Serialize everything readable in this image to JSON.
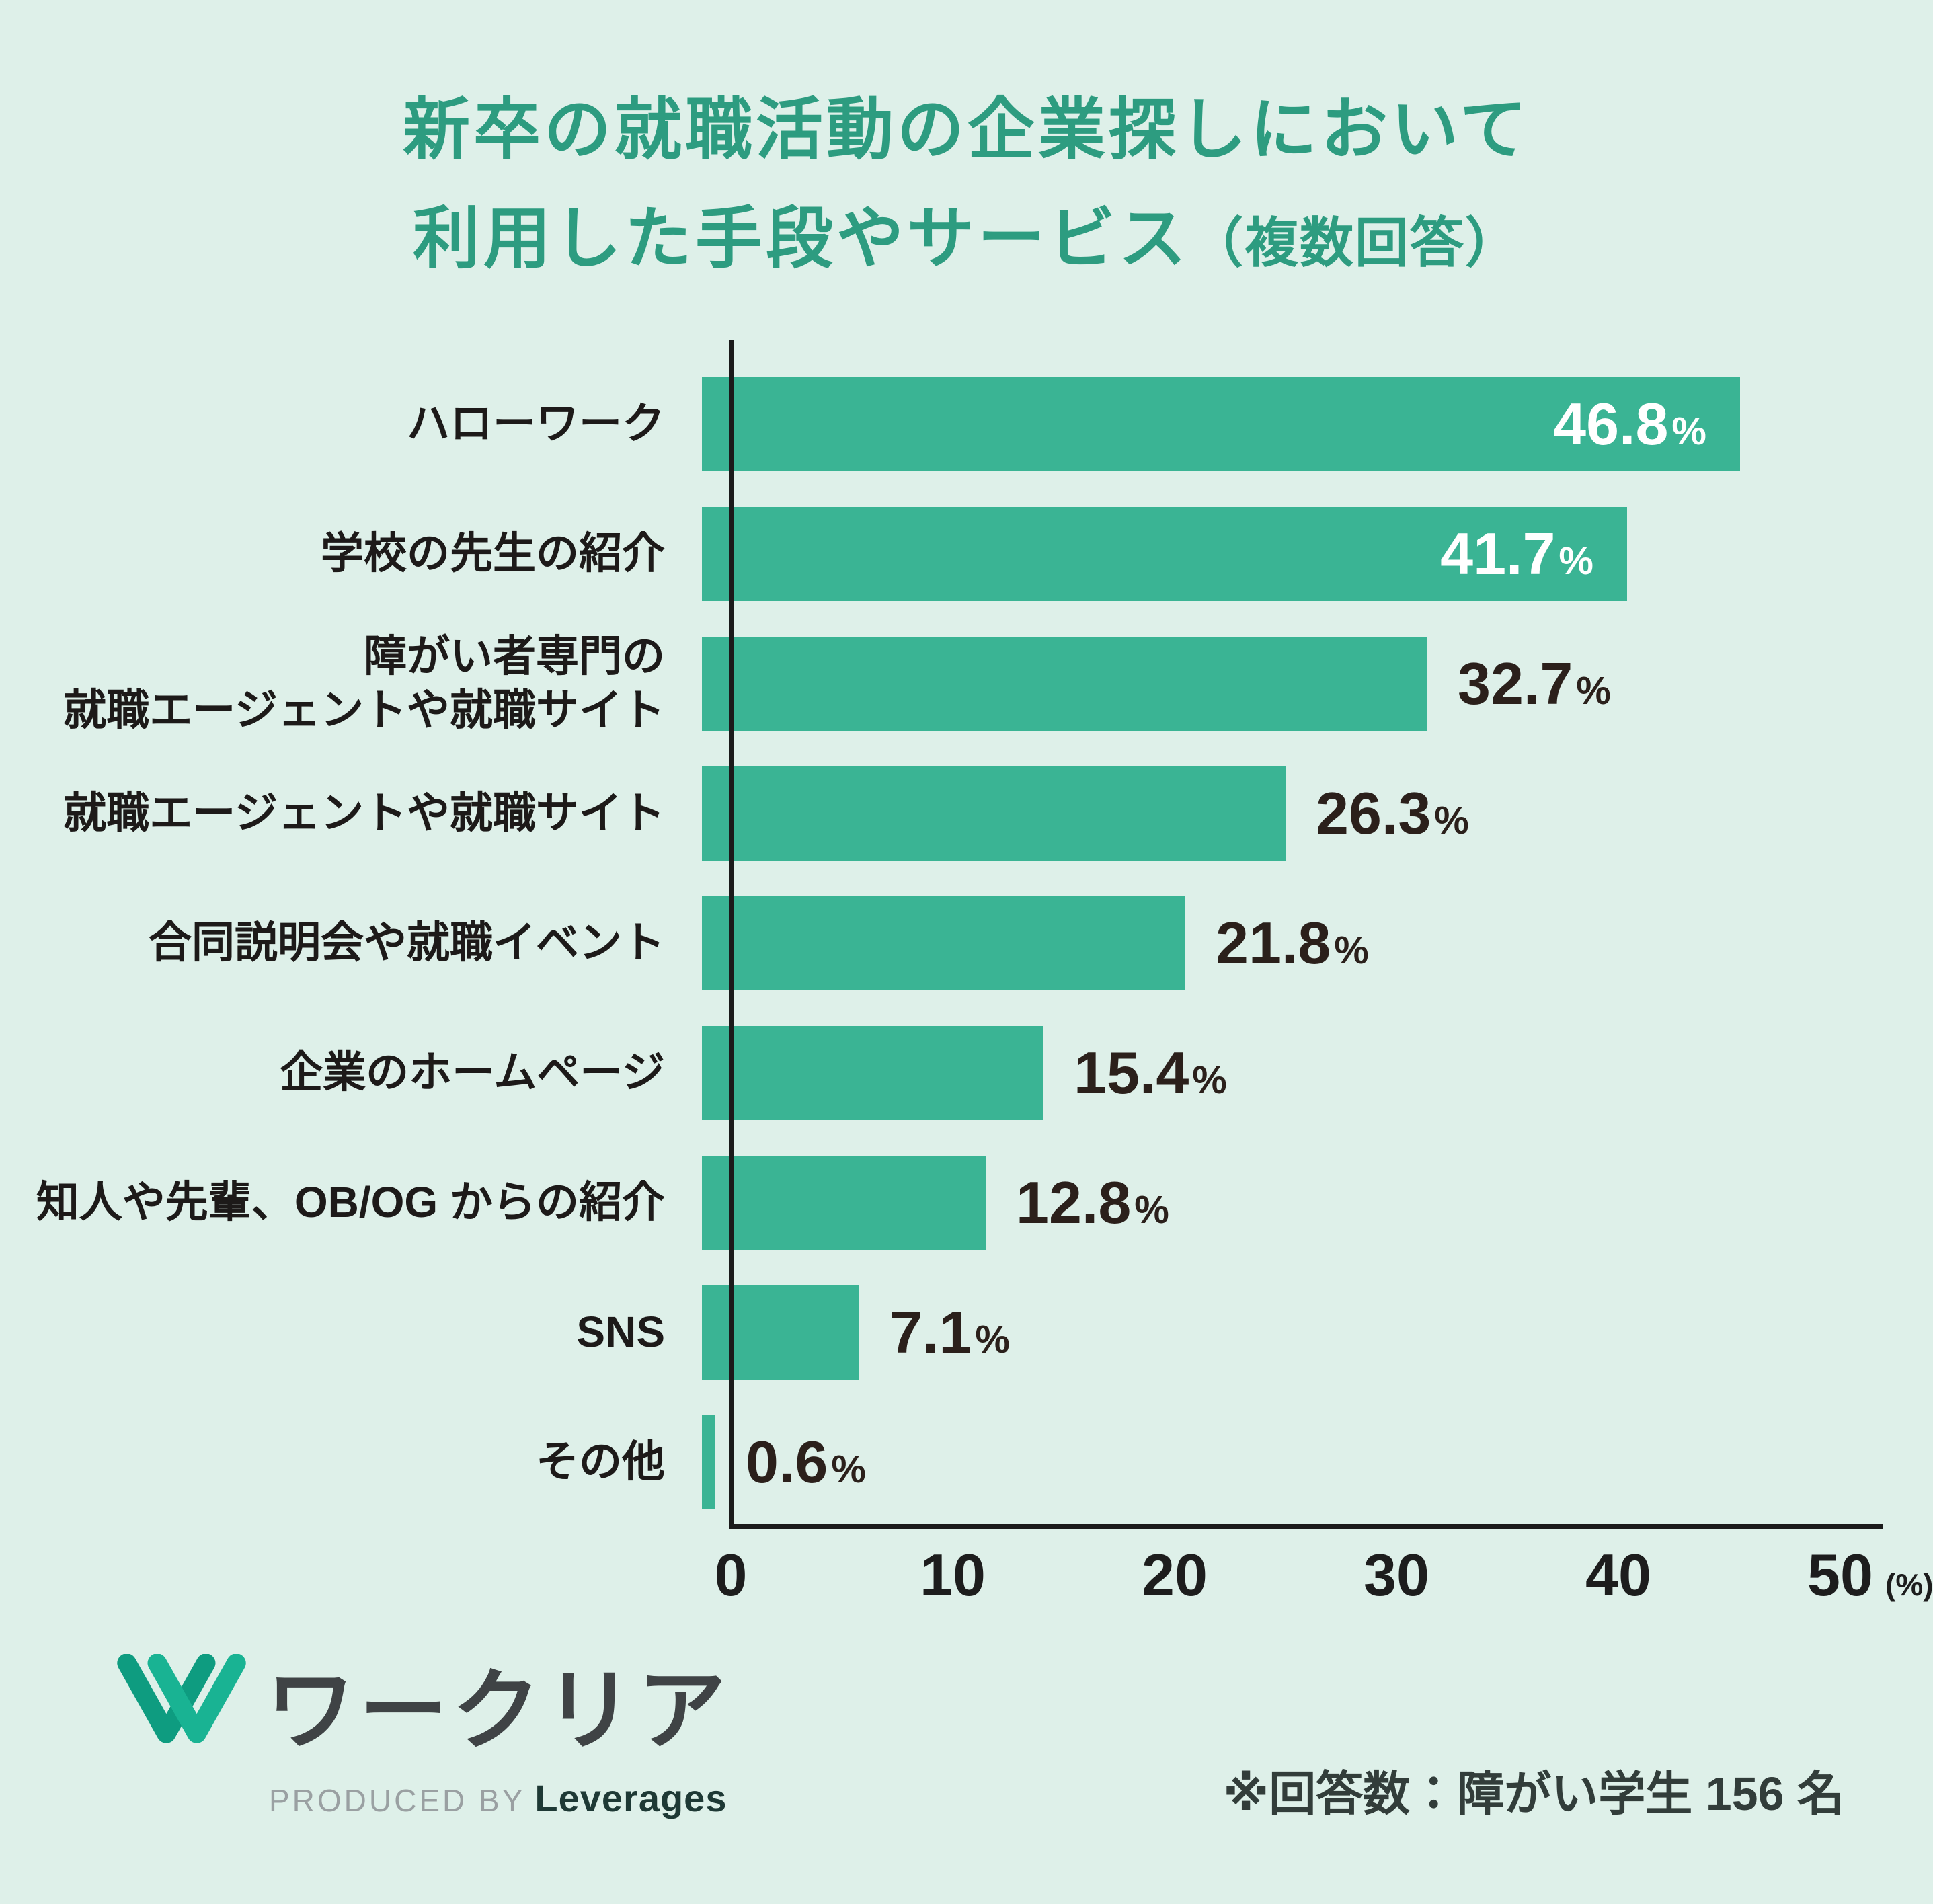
{
  "title": {
    "line1": "新卒の就職活動の企業探しにおいて",
    "line2_main": "利用した手段やサービス",
    "line2_note": "（複数回答）"
  },
  "chart_data": {
    "type": "bar",
    "orientation": "horizontal",
    "title": "新卒の就職活動の企業探しにおいて利用した手段やサービス（複数回答）",
    "categories": [
      "ハローワーク",
      "学校の先生の紹介",
      "障がい者専門の就職エージェントや就職サイト",
      "就職エージェントや就職サイト",
      "合同説明会や就職イベント",
      "企業のホームページ",
      "知人や先輩、OB/OG からの紹介",
      "SNS",
      "その他"
    ],
    "values": [
      46.8,
      41.7,
      32.7,
      26.3,
      21.8,
      15.4,
      12.8,
      7.1,
      0.6
    ],
    "bars": [
      {
        "label_lines": [
          "ハローワーク"
        ],
        "value": 46.8,
        "display": "46.8",
        "value_inside": true
      },
      {
        "label_lines": [
          "学校の先生の紹介"
        ],
        "value": 41.7,
        "display": "41.7",
        "value_inside": true
      },
      {
        "label_lines": [
          "障がい者専門の",
          "就職エージェントや就職サイト"
        ],
        "value": 32.7,
        "display": "32.7",
        "value_inside": false
      },
      {
        "label_lines": [
          "就職エージェントや就職サイト"
        ],
        "value": 26.3,
        "display": "26.3",
        "value_inside": false
      },
      {
        "label_lines": [
          "合同説明会や就職イベント"
        ],
        "value": 21.8,
        "display": "21.8",
        "value_inside": false
      },
      {
        "label_lines": [
          "企業のホームページ"
        ],
        "value": 15.4,
        "display": "15.4",
        "value_inside": false
      },
      {
        "label_lines": [
          "知人や先輩、OB/OG からの紹介"
        ],
        "value": 12.8,
        "display": "12.8",
        "value_inside": false
      },
      {
        "label_lines": [
          "SNS"
        ],
        "value": 7.1,
        "display": "7.1",
        "value_inside": false
      },
      {
        "label_lines": [
          "その他"
        ],
        "value": 0.6,
        "display": "0.6",
        "value_inside": false
      }
    ],
    "value_suffix": "%",
    "xlim": [
      0,
      50
    ],
    "x_ticks": [
      "0",
      "10",
      "20",
      "30",
      "40",
      "50"
    ],
    "x_axis_unit": "(%)",
    "grid": false,
    "legend": "none",
    "bar_color": "#3ab494",
    "colors": {
      "background": "#def0e9",
      "title_green": "#2d9c80",
      "bar_teal": "#3ab494",
      "value_dark": "#2b201b",
      "value_light": "#ffffff",
      "axis_black": "#1b1b1b"
    }
  },
  "footer": {
    "note": "※回答数：障がい学生 156 名",
    "logo": {
      "brand": "ワークリア",
      "produced_by": "PRODUCED BY",
      "company": "Leverages"
    }
  }
}
